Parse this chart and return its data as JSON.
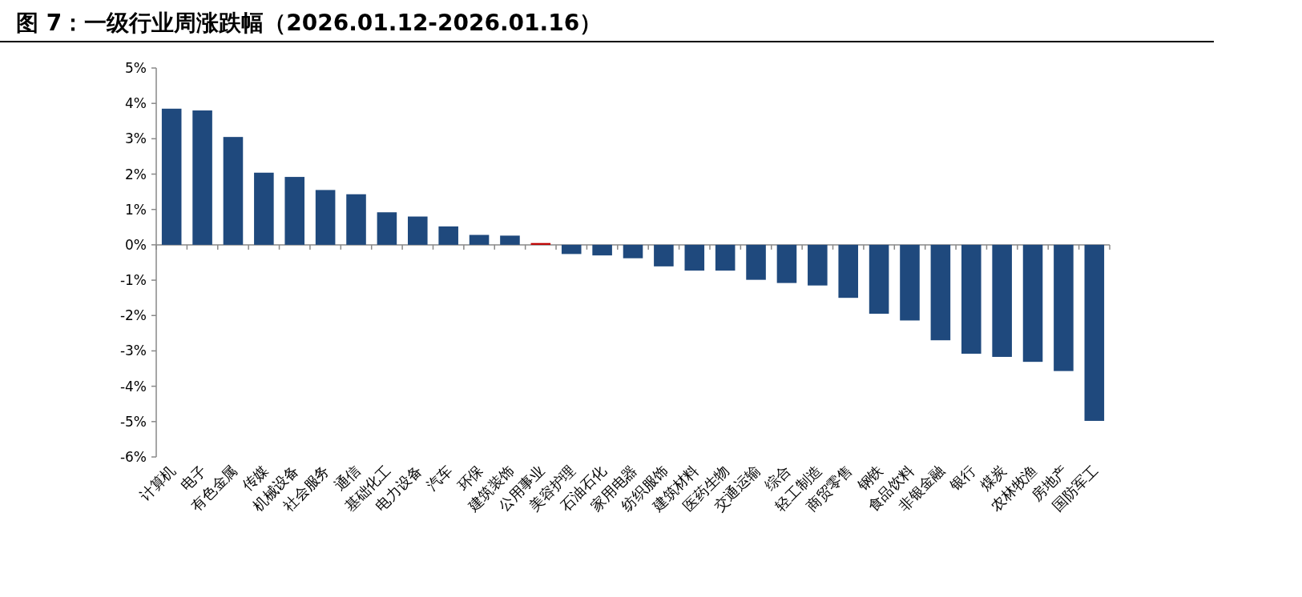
{
  "chart_data": {
    "type": "bar",
    "title": "图 7：一级行业周涨跌幅（2026.01.12-2026.01.16）",
    "categories": [
      "计算机",
      "电子",
      "有色金属",
      "传媒",
      "机械设备",
      "社会服务",
      "通信",
      "基础化工",
      "电力设备",
      "汽车",
      "环保",
      "建筑装饰",
      "公用事业",
      "美容护理",
      "石油石化",
      "家用电器",
      "纺织服饰",
      "建筑材料",
      "医药生物",
      "交通运输",
      "综合",
      "轻工制造",
      "商贸零售",
      "钢铁",
      "食品饮料",
      "非银金融",
      "银行",
      "煤炭",
      "农林牧渔",
      "房地产",
      "国防军工"
    ],
    "values": [
      3.85,
      3.8,
      3.05,
      2.04,
      1.92,
      1.55,
      1.43,
      0.92,
      0.8,
      0.52,
      0.28,
      0.26,
      0.05,
      -0.26,
      -0.3,
      -0.38,
      -0.61,
      -0.73,
      -0.73,
      -0.99,
      -1.08,
      -1.15,
      -1.5,
      -1.95,
      -2.14,
      -2.7,
      -3.08,
      -3.17,
      -3.31,
      -3.57,
      -4.98
    ],
    "colors": [
      "#1f497d",
      "#1f497d",
      "#1f497d",
      "#1f497d",
      "#1f497d",
      "#1f497d",
      "#1f497d",
      "#1f497d",
      "#1f497d",
      "#1f497d",
      "#1f497d",
      "#1f497d",
      "#c00000",
      "#1f497d",
      "#1f497d",
      "#1f497d",
      "#1f497d",
      "#1f497d",
      "#1f497d",
      "#1f497d",
      "#1f497d",
      "#1f497d",
      "#1f497d",
      "#1f497d",
      "#1f497d",
      "#1f497d",
      "#1f497d",
      "#1f497d",
      "#1f497d",
      "#1f497d",
      "#1f497d"
    ],
    "ylim": [
      -6,
      5
    ],
    "yticks": [
      {
        "value": 5,
        "label": "5%"
      },
      {
        "value": 4,
        "label": "4%"
      },
      {
        "value": 3,
        "label": "3%"
      },
      {
        "value": 2,
        "label": "2%"
      },
      {
        "value": 1,
        "label": "1%"
      },
      {
        "value": 0,
        "label": "0%"
      },
      {
        "value": -1,
        "label": "-1%"
      },
      {
        "value": -2,
        "label": "-2%"
      },
      {
        "value": -3,
        "label": "-3%"
      },
      {
        "value": -4,
        "label": "-4%"
      },
      {
        "value": -5,
        "label": "-5%"
      },
      {
        "value": -6,
        "label": "-6%"
      }
    ],
    "legend": false
  }
}
